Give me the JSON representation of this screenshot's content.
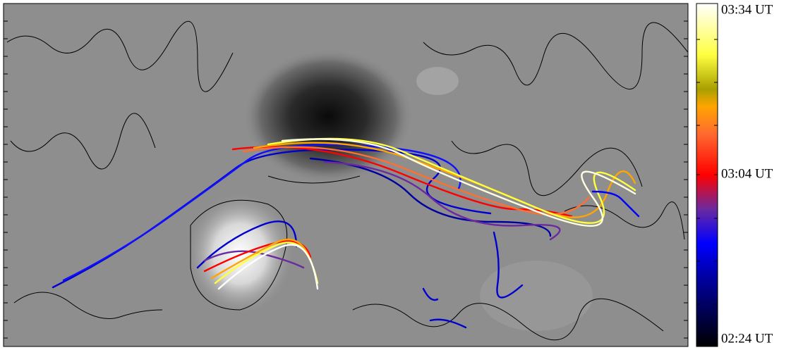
{
  "colorbar": {
    "labels": [
      "03:34 UT",
      "03:04 UT",
      "02:24 UT"
    ]
  }
}
